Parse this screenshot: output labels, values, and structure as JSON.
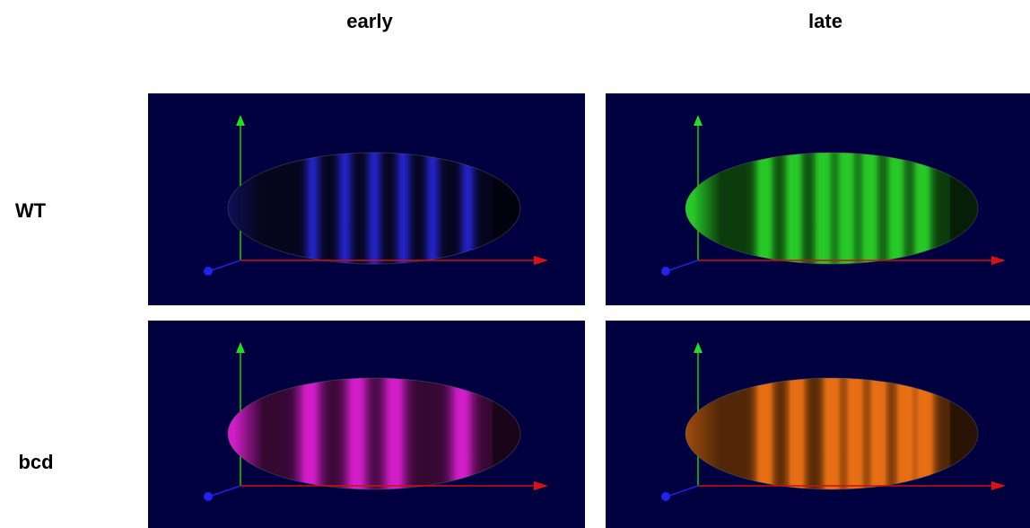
{
  "columns": [
    "early",
    "late"
  ],
  "rows": [
    "WT",
    "bcd"
  ]
}
